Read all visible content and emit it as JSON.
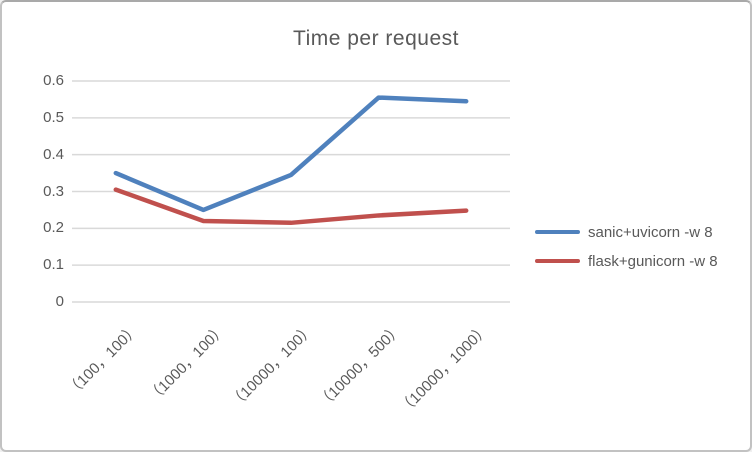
{
  "chart_data": {
    "type": "line",
    "title": "Time per request",
    "categories": [
      "（100，100）",
      "（1000，100）",
      "（10000，100）",
      "（10000，500）",
      "（10000，1000）"
    ],
    "series": [
      {
        "name": "sanic+uvicorn -w 8",
        "color": "#4F81BD",
        "values": [
          0.35,
          0.25,
          0.345,
          0.555,
          0.545
        ]
      },
      {
        "name": "flask+gunicorn -w 8",
        "color": "#C0504D",
        "values": [
          0.305,
          0.22,
          0.215,
          0.235,
          0.248
        ]
      }
    ],
    "xlabel": "",
    "ylabel": "",
    "ylim": [
      0,
      0.6
    ],
    "yticks": [
      0,
      0.1,
      0.2,
      0.3,
      0.4,
      0.5,
      0.6
    ],
    "ytick_labels": [
      "0",
      "0.1",
      "0.2",
      "0.3",
      "0.4",
      "0.5",
      "0.6"
    ],
    "grid": "horizontal",
    "legend_position": "right",
    "colors": {
      "text": "#595959",
      "gridline": "#d9d9d9",
      "background": "#ffffff",
      "border": "#c2c2c2"
    }
  }
}
